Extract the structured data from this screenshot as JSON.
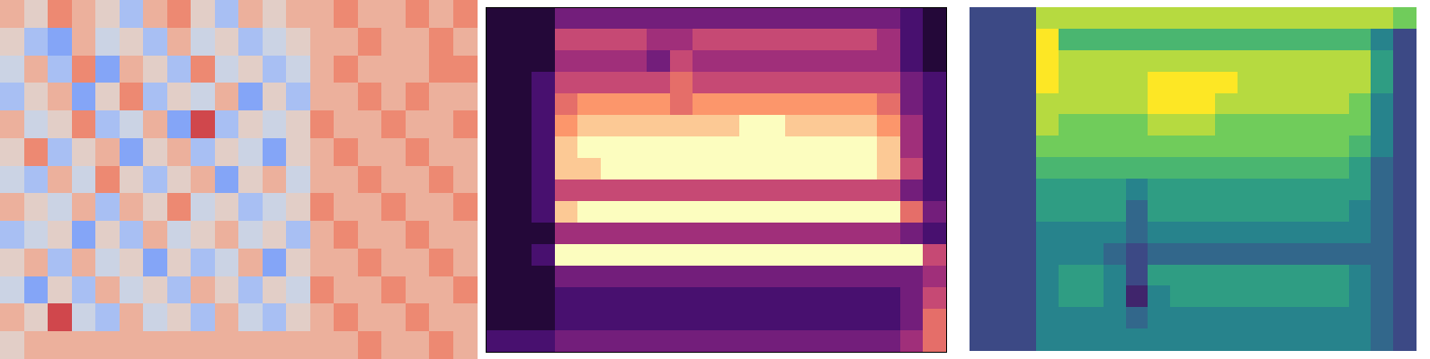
{
  "chart_data": [
    {
      "type": "heatmap",
      "color": "coolwarm",
      "tick_labels": false,
      "zlim": [
        0,
        9
      ],
      "cells": [
        [
          6,
          5,
          7,
          6,
          5,
          3,
          6,
          7,
          5,
          3,
          6,
          5,
          6,
          6,
          7,
          6,
          6,
          7,
          6,
          7
        ],
        [
          5,
          3,
          2,
          6,
          4,
          5,
          3,
          6,
          4,
          5,
          3,
          4,
          5,
          6,
          6,
          7,
          6,
          6,
          7,
          6
        ],
        [
          4,
          6,
          3,
          7,
          2,
          6,
          5,
          3,
          7,
          4,
          5,
          3,
          4,
          6,
          7,
          6,
          6,
          6,
          7,
          7
        ],
        [
          3,
          5,
          6,
          2,
          5,
          7,
          3,
          5,
          4,
          6,
          2,
          5,
          3,
          6,
          6,
          7,
          6,
          7,
          6,
          6
        ],
        [
          6,
          4,
          5,
          7,
          3,
          4,
          6,
          2,
          8,
          3,
          5,
          4,
          5,
          7,
          6,
          6,
          7,
          6,
          6,
          7
        ],
        [
          5,
          7,
          3,
          5,
          6,
          2,
          5,
          6,
          3,
          5,
          4,
          2,
          5,
          6,
          7,
          6,
          6,
          7,
          6,
          6
        ],
        [
          4,
          3,
          6,
          4,
          7,
          5,
          3,
          5,
          6,
          2,
          5,
          6,
          4,
          6,
          6,
          7,
          6,
          6,
          7,
          6
        ],
        [
          6,
          5,
          4,
          6,
          3,
          6,
          5,
          7,
          4,
          5,
          3,
          4,
          5,
          7,
          6,
          6,
          7,
          6,
          6,
          7
        ],
        [
          3,
          4,
          5,
          2,
          5,
          3,
          6,
          4,
          5,
          6,
          4,
          5,
          3,
          6,
          7,
          6,
          6,
          7,
          6,
          6
        ],
        [
          5,
          6,
          3,
          6,
          4,
          5,
          2,
          5,
          3,
          4,
          6,
          2,
          5,
          6,
          6,
          7,
          6,
          6,
          7,
          6
        ],
        [
          4,
          2,
          5,
          3,
          6,
          4,
          5,
          3,
          6,
          5,
          3,
          5,
          4,
          7,
          6,
          6,
          7,
          6,
          6,
          7
        ],
        [
          6,
          5,
          8,
          4,
          3,
          6,
          4,
          5,
          3,
          6,
          4,
          3,
          5,
          6,
          7,
          6,
          6,
          7,
          6,
          6
        ],
        [
          5,
          6,
          6,
          6,
          6,
          6,
          6,
          6,
          6,
          6,
          6,
          6,
          6,
          6,
          6,
          7,
          6,
          6,
          7,
          6
        ]
      ]
    },
    {
      "type": "heatmap",
      "color": "magma",
      "tick_labels": false,
      "zlim": [
        0,
        9
      ],
      "cells": [
        [
          1,
          1,
          1,
          3,
          3,
          3,
          3,
          3,
          3,
          3,
          3,
          3,
          3,
          3,
          3,
          3,
          3,
          3,
          2,
          1
        ],
        [
          1,
          1,
          1,
          5,
          5,
          5,
          5,
          4,
          4,
          5,
          5,
          5,
          5,
          5,
          5,
          5,
          5,
          4,
          2,
          1
        ],
        [
          1,
          1,
          1,
          4,
          4,
          4,
          4,
          3,
          5,
          4,
          4,
          4,
          4,
          4,
          4,
          4,
          4,
          4,
          2,
          1
        ],
        [
          1,
          1,
          2,
          5,
          5,
          5,
          5,
          5,
          6,
          5,
          5,
          5,
          5,
          5,
          5,
          5,
          5,
          5,
          3,
          2
        ],
        [
          1,
          1,
          2,
          6,
          7,
          7,
          7,
          7,
          6,
          7,
          7,
          7,
          7,
          7,
          7,
          7,
          7,
          6,
          3,
          2
        ],
        [
          1,
          1,
          2,
          7,
          8,
          8,
          8,
          8,
          8,
          8,
          8,
          9,
          9,
          8,
          8,
          8,
          8,
          7,
          4,
          2
        ],
        [
          1,
          1,
          2,
          8,
          9,
          9,
          9,
          9,
          9,
          9,
          9,
          9,
          9,
          9,
          9,
          9,
          9,
          8,
          4,
          2
        ],
        [
          1,
          1,
          2,
          8,
          8,
          9,
          9,
          9,
          9,
          9,
          9,
          9,
          9,
          9,
          9,
          9,
          9,
          8,
          5,
          2
        ],
        [
          1,
          1,
          2,
          5,
          5,
          5,
          5,
          5,
          5,
          5,
          5,
          5,
          5,
          5,
          5,
          5,
          5,
          5,
          3,
          2
        ],
        [
          1,
          1,
          2,
          8,
          9,
          9,
          9,
          9,
          9,
          9,
          9,
          9,
          9,
          9,
          9,
          9,
          9,
          9,
          6,
          3
        ],
        [
          1,
          1,
          1,
          4,
          4,
          4,
          4,
          4,
          4,
          4,
          4,
          4,
          4,
          4,
          4,
          4,
          4,
          4,
          3,
          2
        ],
        [
          1,
          1,
          2,
          9,
          9,
          9,
          9,
          9,
          9,
          9,
          9,
          9,
          9,
          9,
          9,
          9,
          9,
          9,
          9,
          5
        ],
        [
          1,
          1,
          1,
          3,
          3,
          3,
          3,
          3,
          3,
          3,
          3,
          3,
          3,
          3,
          3,
          3,
          3,
          3,
          3,
          4
        ],
        [
          1,
          1,
          1,
          2,
          2,
          2,
          2,
          2,
          2,
          2,
          2,
          2,
          2,
          2,
          2,
          2,
          2,
          2,
          3,
          5
        ],
        [
          1,
          1,
          1,
          2,
          2,
          2,
          2,
          2,
          2,
          2,
          2,
          2,
          2,
          2,
          2,
          2,
          2,
          2,
          3,
          6
        ],
        [
          2,
          2,
          2,
          3,
          3,
          3,
          3,
          3,
          3,
          3,
          3,
          3,
          3,
          3,
          3,
          3,
          3,
          3,
          4,
          6
        ]
      ]
    },
    {
      "type": "heatmap",
      "color": "viridis",
      "tick_labels": false,
      "zlim": [
        0,
        9
      ],
      "cells": [
        [
          2,
          2,
          2,
          8,
          8,
          8,
          8,
          8,
          8,
          8,
          8,
          8,
          8,
          8,
          8,
          8,
          8,
          8,
          8,
          7
        ],
        [
          2,
          2,
          2,
          9,
          6,
          6,
          6,
          6,
          6,
          6,
          6,
          6,
          6,
          6,
          6,
          6,
          6,
          6,
          4,
          2
        ],
        [
          2,
          2,
          2,
          9,
          8,
          8,
          8,
          8,
          8,
          8,
          8,
          8,
          8,
          8,
          8,
          8,
          8,
          8,
          5,
          2
        ],
        [
          2,
          2,
          2,
          9,
          8,
          8,
          8,
          8,
          9,
          9,
          9,
          9,
          8,
          8,
          8,
          8,
          8,
          8,
          5,
          2
        ],
        [
          2,
          2,
          2,
          8,
          8,
          8,
          8,
          8,
          9,
          9,
          9,
          8,
          8,
          8,
          8,
          8,
          8,
          7,
          4,
          2
        ],
        [
          2,
          2,
          2,
          8,
          7,
          7,
          7,
          7,
          8,
          8,
          8,
          7,
          7,
          7,
          7,
          7,
          7,
          7,
          4,
          2
        ],
        [
          2,
          2,
          2,
          7,
          7,
          7,
          7,
          7,
          7,
          7,
          7,
          7,
          7,
          7,
          7,
          7,
          7,
          6,
          4,
          2
        ],
        [
          2,
          2,
          2,
          6,
          6,
          6,
          6,
          6,
          6,
          6,
          6,
          6,
          6,
          6,
          6,
          6,
          6,
          5,
          3,
          2
        ],
        [
          2,
          2,
          2,
          5,
          5,
          5,
          5,
          4,
          5,
          5,
          5,
          5,
          5,
          5,
          5,
          5,
          5,
          5,
          3,
          2
        ],
        [
          2,
          2,
          2,
          5,
          5,
          5,
          5,
          3,
          5,
          5,
          5,
          5,
          5,
          5,
          5,
          5,
          5,
          4,
          3,
          2
        ],
        [
          2,
          2,
          2,
          4,
          4,
          4,
          4,
          3,
          4,
          4,
          4,
          4,
          4,
          4,
          4,
          4,
          4,
          4,
          3,
          2
        ],
        [
          2,
          2,
          2,
          4,
          4,
          4,
          3,
          2,
          3,
          3,
          3,
          3,
          3,
          3,
          3,
          3,
          3,
          3,
          3,
          2
        ],
        [
          2,
          2,
          2,
          4,
          5,
          5,
          4,
          2,
          5,
          5,
          5,
          5,
          5,
          5,
          5,
          5,
          5,
          4,
          3,
          2
        ],
        [
          2,
          2,
          2,
          4,
          5,
          5,
          4,
          1,
          4,
          5,
          5,
          5,
          5,
          5,
          5,
          5,
          5,
          4,
          3,
          2
        ],
        [
          2,
          2,
          2,
          4,
          4,
          4,
          4,
          3,
          4,
          4,
          4,
          4,
          4,
          4,
          4,
          4,
          4,
          4,
          3,
          2
        ],
        [
          2,
          2,
          2,
          4,
          4,
          4,
          4,
          4,
          4,
          4,
          4,
          4,
          4,
          4,
          4,
          4,
          4,
          4,
          3,
          2
        ]
      ]
    }
  ]
}
